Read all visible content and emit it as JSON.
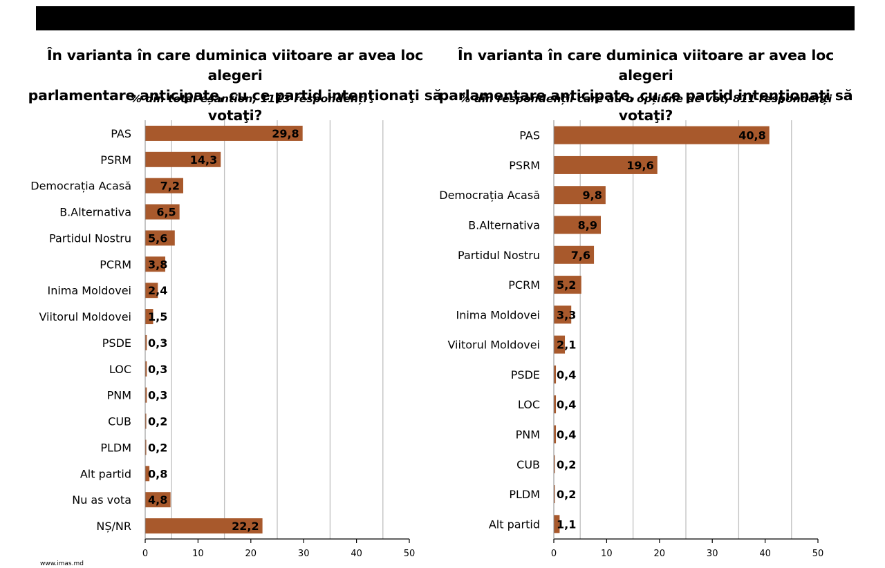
{
  "header": {
    "bar_color": "#000000"
  },
  "footer": {
    "source": "www.imas.md"
  },
  "colors": {
    "bar": "#a8592c",
    "grid": "#bfbfbf",
    "axis": "#000000"
  },
  "chart_data": [
    {
      "type": "bar",
      "orientation": "horizontal",
      "title": "În varianta în care duminica viitoare ar avea loc alegeri parlamentare anticipate, cu ce partid intenţionaţi să votaţi?",
      "title_lines": [
        "În varianta în care duminica viitoare ar avea loc alegeri",
        "parlamentare anticipate, cu ce partid intenţionaţi să votaţi?"
      ],
      "subtitle": "% din total eșantion, 1113 respondenți",
      "categories": [
        "PAS",
        "PSRM",
        "Democrația Acasă",
        "B.Alternativa",
        "Partidul Nostru",
        "PCRM",
        "Inima Moldovei",
        "Viitorul Moldovei",
        "PSDE",
        "LOC",
        "PNM",
        "CUB",
        "PLDM",
        "Alt partid",
        "Nu as vota",
        "NȘ/NR"
      ],
      "values": [
        29.8,
        14.3,
        7.2,
        6.5,
        5.6,
        3.8,
        2.4,
        1.5,
        0.3,
        0.3,
        0.3,
        0.2,
        0.2,
        0.8,
        4.8,
        22.2
      ],
      "labels": [
        "29,8",
        "14,3",
        "7,2",
        "6,5",
        "5,6",
        "3,8",
        "2,4",
        "1,5",
        "0,3",
        "0,3",
        "0,3",
        "0,2",
        "0,2",
        "0,8",
        "4,8",
        "22,2"
      ],
      "xlim": [
        0,
        50
      ],
      "xticks": [
        "0",
        "10",
        "20",
        "30",
        "40",
        "50"
      ],
      "gridlines_at": [
        5,
        15,
        25,
        35,
        45
      ],
      "grid": true
    },
    {
      "type": "bar",
      "orientation": "horizontal",
      "title": "În varianta în care duminica viitoare ar avea loc alegeri parlamentare anticipate, cu ce partid intenţionaţi să votaţi?",
      "title_lines": [
        "În varianta în care duminica viitoare ar avea loc alegeri",
        "parlamentare anticipate, cu ce partid intenţionaţi să votaţi?"
      ],
      "subtitle": "% din respondenții care au o opțiune de vot, 811 respondenți",
      "categories": [
        "PAS",
        "PSRM",
        "Democrația Acasă",
        "B.Alternativa",
        "Partidul Nostru",
        "PCRM",
        "Inima Moldovei",
        "Viitorul Moldovei",
        "PSDE",
        "LOC",
        "PNM",
        "CUB",
        "PLDM",
        "Alt partid"
      ],
      "values": [
        40.8,
        19.6,
        9.8,
        8.9,
        7.6,
        5.2,
        3.3,
        2.1,
        0.4,
        0.4,
        0.4,
        0.2,
        0.2,
        1.1
      ],
      "labels": [
        "40,8",
        "19,6",
        "9,8",
        "8,9",
        "7,6",
        "5,2",
        "3,3",
        "2,1",
        "0,4",
        "0,4",
        "0,4",
        "0,2",
        "0,2",
        "1,1"
      ],
      "xlim": [
        0,
        50
      ],
      "xticks": [
        "0",
        "10",
        "20",
        "30",
        "40",
        "50"
      ],
      "gridlines_at": [
        5,
        15,
        25,
        35,
        45
      ],
      "grid": true
    }
  ]
}
